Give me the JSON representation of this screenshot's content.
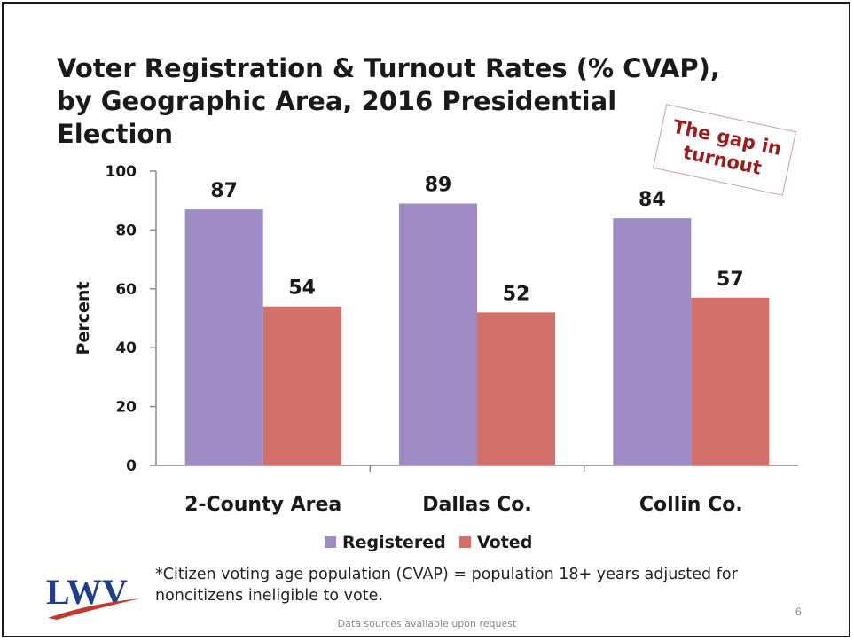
{
  "slide": {
    "title": "Voter Registration & Turnout Rates (% CVAP), by Geographic Area, 2016 Presidential Election",
    "callout": "The gap in turnout",
    "footnote": "*Citizen voting age population (CVAP) = population 18+ years adjusted for noncitizens ineligible to vote.",
    "sources": "Data sources available upon request",
    "page_number": "6",
    "logo_text": "LWV"
  },
  "colors": {
    "registered": "#9f8cc5",
    "voted": "#d4706a",
    "axis": "#888888",
    "text": "#1a1a1a",
    "logo_blue": "#1f3d8a",
    "logo_red": "#c0392b"
  },
  "chart_data": {
    "type": "bar",
    "categories": [
      "2-County Area",
      "Dallas Co.",
      "Collin Co."
    ],
    "series": [
      {
        "name": "Registered",
        "values": [
          87,
          89,
          84
        ]
      },
      {
        "name": "Voted",
        "values": [
          54,
          52,
          57
        ]
      }
    ],
    "data_labels": [
      [
        "87",
        "89",
        "84"
      ],
      [
        "54",
        "52",
        "57"
      ]
    ],
    "ylabel": "Percent",
    "ylim": [
      0,
      100
    ],
    "yticks": [
      0,
      20,
      40,
      60,
      80,
      100
    ],
    "grid": false,
    "legend_position": "bottom"
  }
}
